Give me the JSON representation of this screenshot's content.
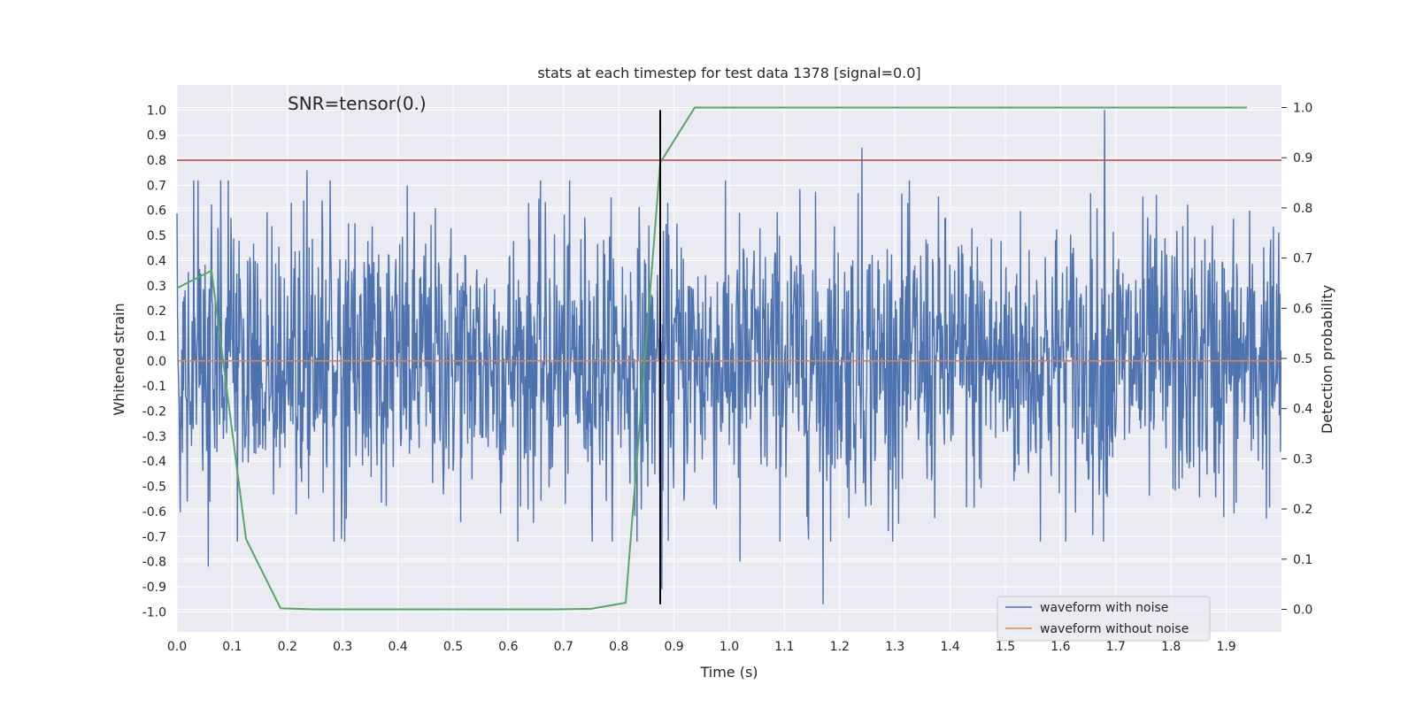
{
  "chart_data": {
    "type": "line",
    "title": "stats at each timestep for test data 1378 [signal=0.0]",
    "annotation": "SNR=tensor(0.)",
    "xlabel": "Time (s)",
    "ylabel_left": "Whitened strain",
    "ylabel_right": "Detection probability",
    "xlim": [
      0.0,
      2.0
    ],
    "ylim_left": [
      -1.08,
      1.1
    ],
    "ylim_right": [
      -0.045,
      1.045
    ],
    "x_ticks": [
      "0.0",
      "0.1",
      "0.2",
      "0.3",
      "0.4",
      "0.5",
      "0.6",
      "0.7",
      "0.8",
      "0.9",
      "1.0",
      "1.1",
      "1.2",
      "1.3",
      "1.4",
      "1.5",
      "1.6",
      "1.7",
      "1.8",
      "1.9"
    ],
    "y_ticks_left": [
      "1.0",
      "0.9",
      "0.8",
      "0.7",
      "0.6",
      "0.5",
      "0.4",
      "0.3",
      "0.2",
      "0.1",
      "0.0",
      "-0.1",
      "-0.2",
      "-0.3",
      "-0.4",
      "-0.5",
      "-0.6",
      "-0.7",
      "-0.8",
      "-0.9",
      "-1.0"
    ],
    "y_ticks_right": [
      "1.0",
      "0.9",
      "0.8",
      "0.7",
      "0.6",
      "0.5",
      "0.4",
      "0.3",
      "0.2",
      "0.1",
      "0.0"
    ],
    "grid": true,
    "legend_position": "bottom-right",
    "series": [
      {
        "name": "waveform with noise",
        "axis": "left",
        "color": "#4c72b0",
        "points": 2048,
        "std": 0.28,
        "extremes": [
          {
            "x": 0.057,
            "y": -0.82
          },
          {
            "x": 0.235,
            "y": 0.76
          },
          {
            "x": 0.878,
            "y": -0.91
          },
          {
            "x": 1.17,
            "y": -0.97
          },
          {
            "x": 1.24,
            "y": 0.85
          },
          {
            "x": 1.68,
            "y": 1.0
          },
          {
            "x": 1.02,
            "y": -0.8
          }
        ]
      },
      {
        "name": "waveform without noise",
        "axis": "left",
        "color": "#dd8452",
        "x": [
          0.0,
          2.0
        ],
        "y": [
          0.0,
          0.0
        ]
      },
      {
        "name": "",
        "axis": "right",
        "color": "#55a868",
        "x": [
          0.0,
          0.0625,
          0.125,
          0.1875,
          0.25,
          0.3125,
          0.375,
          0.4375,
          0.5,
          0.5625,
          0.625,
          0.6875,
          0.75,
          0.8125,
          0.875,
          0.9375,
          1.0,
          1.0625,
          1.125,
          1.1875,
          1.25,
          1.3125,
          1.375,
          1.4375,
          1.5,
          1.5625,
          1.625,
          1.6875,
          1.75,
          1.8125,
          1.875,
          1.9375
        ],
        "y": [
          0.64,
          0.675,
          0.14,
          0.002,
          0.0,
          0.0,
          0.0,
          0.0,
          0.0,
          0.0,
          0.0,
          0.0,
          0.001,
          0.013,
          0.89,
          1.0,
          1.0,
          1.0,
          1.0,
          1.0,
          1.0,
          1.0,
          1.0,
          1.0,
          1.0,
          1.0,
          1.0,
          1.0,
          1.0,
          1.0,
          1.0,
          1.0
        ]
      }
    ],
    "threshold_line": {
      "axis": "left",
      "y": 0.8,
      "color": "#c44e52"
    },
    "vertical_line": {
      "x": 0.875,
      "y_range": [
        -0.97,
        1.0
      ],
      "color": "#000000"
    }
  }
}
